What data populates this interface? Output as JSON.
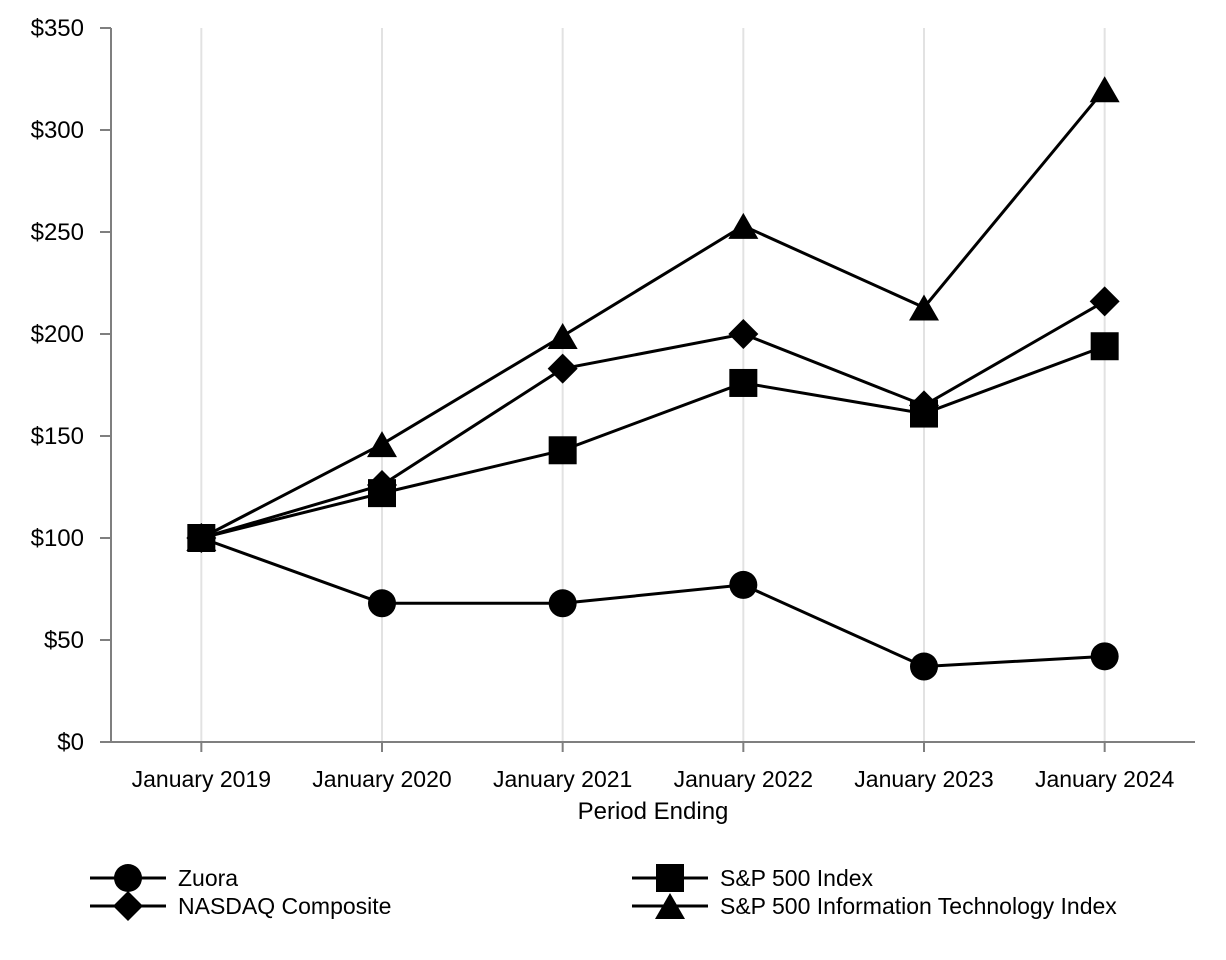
{
  "chart_data": {
    "type": "line",
    "title": "",
    "xlabel": "Period Ending",
    "ylabel": "",
    "x": [
      "January 2019",
      "January 2020",
      "January 2021",
      "January 2022",
      "January 2023",
      "January 2024"
    ],
    "y_ticks": [
      "$0",
      "$50",
      "$100",
      "$150",
      "$200",
      "$250",
      "$300",
      "$350"
    ],
    "ylim": [
      0,
      350
    ],
    "y_tick_step": 50,
    "grid": "vertical-only",
    "legend_position": "bottom-two-columns",
    "series": [
      {
        "name": "Zuora",
        "marker": "circle",
        "color": "#000000",
        "values": [
          100,
          68,
          68,
          77,
          37,
          42
        ]
      },
      {
        "name": "S&P 500 Index",
        "marker": "square",
        "color": "#000000",
        "values": [
          100,
          122,
          143,
          176,
          161,
          194
        ]
      },
      {
        "name": "NASDAQ Composite",
        "marker": "diamond",
        "color": "#000000",
        "values": [
          100,
          126,
          183,
          200,
          165,
          216
        ]
      },
      {
        "name": "S&P 500 Information Technology Index",
        "marker": "triangle",
        "color": "#000000",
        "values": [
          100,
          146,
          199,
          253,
          213,
          320
        ]
      }
    ]
  },
  "colors": {
    "series": "#000000",
    "gridline": "#e2e2e2",
    "axis": "#7f7f7f",
    "text": "#000000",
    "background": "#ffffff"
  }
}
